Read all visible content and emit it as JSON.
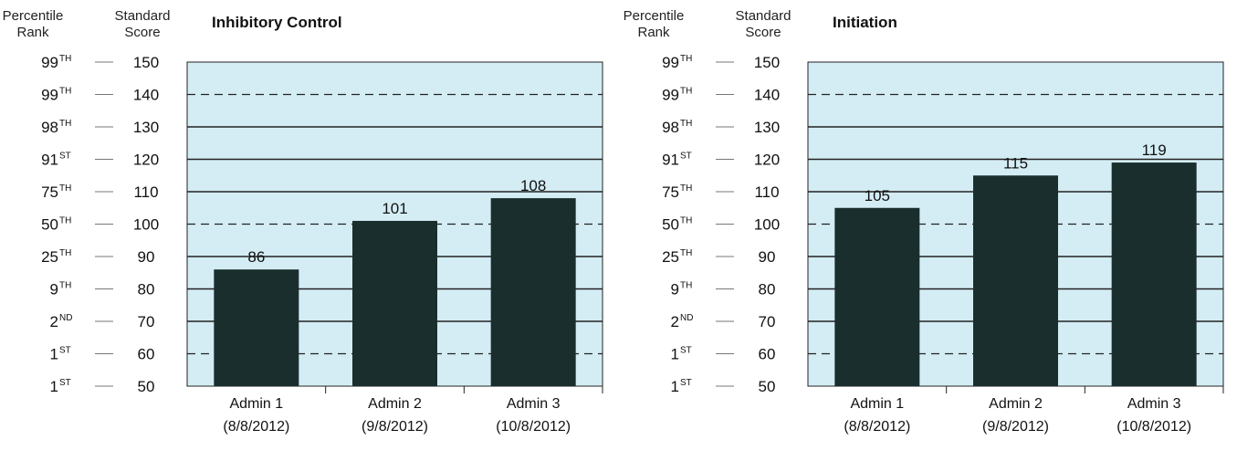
{
  "header": {
    "percentile_line1": "Percentile",
    "percentile_line2": "Rank",
    "standard_line1": "Standard",
    "standard_line2": "Score"
  },
  "scale": [
    {
      "score": 150,
      "pct": "99",
      "suf": "TH"
    },
    {
      "score": 140,
      "pct": "99",
      "suf": "TH"
    },
    {
      "score": 130,
      "pct": "98",
      "suf": "TH"
    },
    {
      "score": 120,
      "pct": "91",
      "suf": "ST"
    },
    {
      "score": 110,
      "pct": "75",
      "suf": "TH"
    },
    {
      "score": 100,
      "pct": "50",
      "suf": "TH"
    },
    {
      "score": 90,
      "pct": "25",
      "suf": "TH"
    },
    {
      "score": 80,
      "pct": "9",
      "suf": "TH"
    },
    {
      "score": 70,
      "pct": "2",
      "suf": "ND"
    },
    {
      "score": 60,
      "pct": "1",
      "suf": "ST"
    },
    {
      "score": 50,
      "pct": "1",
      "suf": "ST"
    }
  ],
  "dashed_scores": [
    140,
    100,
    60
  ],
  "colors": {
    "plot_bg": "#d4edf4",
    "bar": "#1a2e2e",
    "grid": "#222222"
  },
  "chart_data": [
    {
      "type": "bar",
      "title": "Inhibitory Control",
      "categories": [
        [
          "Admin 1",
          "(8/8/2012)"
        ],
        [
          "Admin 2",
          "(9/8/2012)"
        ],
        [
          "Admin 3",
          "(10/8/2012)"
        ]
      ],
      "values": [
        86,
        101,
        108
      ],
      "ylabel": "Standard Score",
      "ylim": [
        50,
        150
      ]
    },
    {
      "type": "bar",
      "title": "Initiation",
      "categories": [
        [
          "Admin 1",
          "(8/8/2012)"
        ],
        [
          "Admin 2",
          "(9/8/2012)"
        ],
        [
          "Admin 3",
          "(10/8/2012)"
        ]
      ],
      "values": [
        105,
        115,
        119
      ],
      "ylabel": "Standard Score",
      "ylim": [
        50,
        150
      ]
    }
  ]
}
